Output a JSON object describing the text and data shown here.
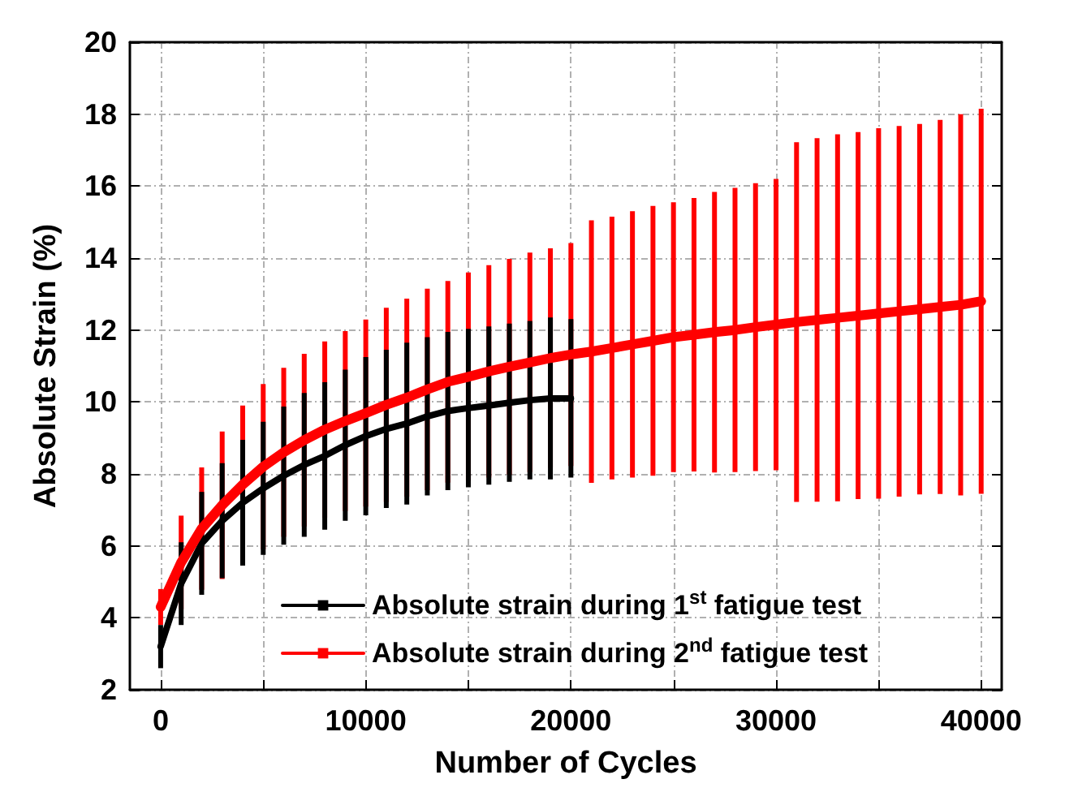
{
  "chart_data": {
    "type": "line",
    "xlabel": "Number of Cycles",
    "ylabel": "Absolute Strain (%)",
    "xlim": [
      -1500,
      41000
    ],
    "ylim": [
      2,
      20
    ],
    "xticks": [
      0,
      {
        "value": 5000,
        "label": null
      },
      10000,
      {
        "value": 15000,
        "label": null
      },
      20000,
      {
        "value": 25000,
        "label": null
      },
      30000,
      {
        "value": 35000,
        "label": null
      },
      40000
    ],
    "yticks": [
      2,
      4,
      6,
      8,
      10,
      12,
      14,
      16,
      18,
      20
    ],
    "grid": true,
    "legend": "bottom",
    "marker": "square",
    "line_style": "solid",
    "series": [
      {
        "name": "Absolute strain during 1$^{st}$ fatigue test",
        "color": "#000000",
        "x": [
          0,
          1000,
          2000,
          3000,
          4000,
          5000,
          6000,
          7000,
          8000,
          9000,
          10000,
          11000,
          12000,
          13000,
          14000,
          15000,
          16000,
          17000,
          18000,
          19000,
          20000
        ],
        "values": [
          3.2,
          4.95,
          6.07,
          6.7,
          7.2,
          7.6,
          7.95,
          8.25,
          8.5,
          8.8,
          9.05,
          9.25,
          9.4,
          9.6,
          9.75,
          9.83,
          9.9,
          9.98,
          10.05,
          10.1,
          10.1
        ],
        "errors": [
          0.6,
          1.15,
          1.43,
          1.6,
          1.75,
          1.85,
          1.92,
          2.0,
          2.05,
          2.1,
          2.2,
          2.2,
          2.25,
          2.2,
          2.2,
          2.2,
          2.2,
          2.2,
          2.2,
          2.25,
          2.2
        ]
      },
      {
        "name": "Absolute strain during 2$^{nd}$ fatigue test",
        "color": "#ff0000",
        "x": [
          0,
          1000,
          2000,
          3000,
          4000,
          5000,
          6000,
          7000,
          8000,
          9000,
          10000,
          11000,
          12000,
          13000,
          14000,
          15000,
          16000,
          17000,
          18000,
          19000,
          20000,
          21000,
          22000,
          23000,
          24000,
          25000,
          26000,
          27000,
          28000,
          29000,
          30000,
          31000,
          32000,
          33000,
          34000,
          35000,
          36000,
          37000,
          38000,
          39000,
          40000
        ],
        "values": [
          4.3,
          5.54,
          6.48,
          7.13,
          7.7,
          8.2,
          8.6,
          8.94,
          9.23,
          9.47,
          9.69,
          9.92,
          10.12,
          10.35,
          10.56,
          10.7,
          10.85,
          10.98,
          11.1,
          11.22,
          11.32,
          11.4,
          11.5,
          11.6,
          11.7,
          11.8,
          11.87,
          11.94,
          12.0,
          12.08,
          12.15,
          12.22,
          12.28,
          12.34,
          12.4,
          12.46,
          12.52,
          12.58,
          12.64,
          12.7,
          12.8
        ],
        "errors": [
          0.5,
          1.3,
          1.7,
          2.05,
          2.2,
          2.3,
          2.35,
          2.4,
          2.45,
          2.5,
          2.6,
          2.7,
          2.75,
          2.8,
          2.8,
          2.9,
          2.95,
          3.0,
          3.05,
          3.05,
          3.1,
          3.65,
          3.65,
          3.7,
          3.75,
          3.75,
          3.8,
          3.9,
          3.95,
          4.0,
          4.05,
          5.0,
          5.05,
          5.1,
          5.1,
          5.15,
          5.15,
          5.15,
          5.2,
          5.3,
          5.35
        ]
      }
    ]
  }
}
